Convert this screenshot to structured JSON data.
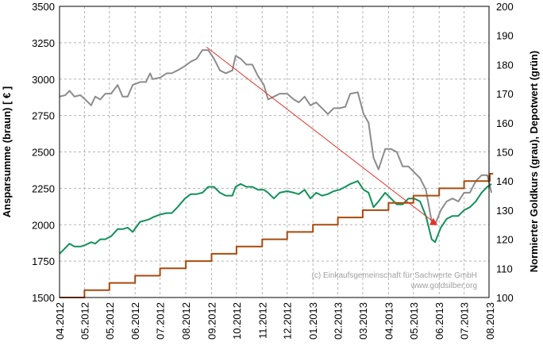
{
  "chart_data": {
    "type": "line",
    "title": "",
    "xlabel": "",
    "ylabel_left": "Ansparsumme (braun) [ € ]",
    "ylabel_right": "Normierter Goldkurs (grau), Depotwert (grün)",
    "x_range": [
      "2012-04-01",
      "2013-08-31"
    ],
    "x_tick_labels": [
      "04.2012",
      "05.2012",
      "05.2012",
      "06.2012",
      "07.2012",
      "08.2012",
      "09.2012",
      "10.2012",
      "11.2012",
      "12.2012",
      "01.2013",
      "02.2013",
      "03.2013",
      "04.2013",
      "05.2013",
      "06.2013",
      "07.2013",
      "08.2013"
    ],
    "x_tick_dates": [
      "2012-04-01",
      "2012-05-01",
      "2012-05-31",
      "2012-07-01",
      "2012-07-31",
      "2012-08-31",
      "2012-10-01",
      "2012-10-31",
      "2012-12-01",
      "2012-12-31",
      "2013-01-31",
      "2013-03-02",
      "2013-04-01",
      "2013-05-02",
      "2013-06-01",
      "2013-07-02",
      "2013-08-01",
      "2013-09-01"
    ],
    "y_left": {
      "range": [
        1500,
        3500
      ],
      "ticks": [
        "1500",
        "1750",
        "2000",
        "2250",
        "2500",
        "2750",
        "3000",
        "3250",
        "3500"
      ]
    },
    "y_right": {
      "range": [
        100,
        200
      ],
      "ticks": [
        "100",
        "110",
        "120",
        "130",
        "140",
        "150",
        "160",
        "170",
        "180",
        "190",
        "200"
      ]
    },
    "grid": true,
    "series": [
      {
        "axis": "right",
        "color": "#8c8c8c",
        "points": [
          [
            "2012-04-01",
            169
          ],
          [
            "2012-04-08",
            169.5
          ],
          [
            "2012-04-13",
            171
          ],
          [
            "2012-04-19",
            169
          ],
          [
            "2012-04-26",
            169.5
          ],
          [
            "2012-05-02",
            168
          ],
          [
            "2012-05-09",
            166
          ],
          [
            "2012-05-14",
            169
          ],
          [
            "2012-05-20",
            168
          ],
          [
            "2012-05-26",
            170
          ],
          [
            "2012-06-02",
            170
          ],
          [
            "2012-06-10",
            173
          ],
          [
            "2012-06-16",
            169
          ],
          [
            "2012-06-22",
            169
          ],
          [
            "2012-06-28",
            173
          ],
          [
            "2012-07-07",
            174
          ],
          [
            "2012-07-14",
            174
          ],
          [
            "2012-07-19",
            177
          ],
          [
            "2012-07-22",
            175
          ],
          [
            "2012-07-31",
            175.5
          ],
          [
            "2012-08-08",
            177
          ],
          [
            "2012-08-14",
            177
          ],
          [
            "2012-08-21",
            178
          ],
          [
            "2012-08-30",
            179.5
          ],
          [
            "2012-09-06",
            181
          ],
          [
            "2012-09-13",
            182
          ],
          [
            "2012-09-20",
            185
          ],
          [
            "2012-09-27",
            185
          ],
          [
            "2012-10-04",
            182
          ],
          [
            "2012-10-11",
            178
          ],
          [
            "2012-10-18",
            177
          ],
          [
            "2012-10-26",
            178
          ],
          [
            "2012-10-30",
            183
          ],
          [
            "2012-11-05",
            182
          ],
          [
            "2012-11-12",
            180
          ],
          [
            "2012-11-19",
            180
          ],
          [
            "2012-11-26",
            176
          ],
          [
            "2012-12-03",
            173
          ],
          [
            "2012-12-08",
            168
          ],
          [
            "2012-12-15",
            169
          ],
          [
            "2012-12-22",
            170
          ],
          [
            "2012-12-31",
            170
          ],
          [
            "2013-01-08",
            168
          ],
          [
            "2013-01-14",
            167
          ],
          [
            "2013-01-21",
            169
          ],
          [
            "2013-01-28",
            166
          ],
          [
            "2013-02-04",
            167
          ],
          [
            "2013-02-11",
            165
          ],
          [
            "2013-02-18",
            163
          ],
          [
            "2013-02-25",
            165
          ],
          [
            "2013-03-04",
            165
          ],
          [
            "2013-03-11",
            165.5
          ],
          [
            "2013-03-17",
            170
          ],
          [
            "2013-03-26",
            170.5
          ],
          [
            "2013-04-02",
            163
          ],
          [
            "2013-04-08",
            160
          ],
          [
            "2013-04-14",
            148
          ],
          [
            "2013-04-20",
            144
          ],
          [
            "2013-04-28",
            151
          ],
          [
            "2013-05-05",
            151
          ],
          [
            "2013-05-12",
            150
          ],
          [
            "2013-05-19",
            145
          ],
          [
            "2013-05-26",
            145
          ],
          [
            "2013-06-02",
            143
          ],
          [
            "2013-06-09",
            141
          ],
          [
            "2013-06-16",
            137
          ],
          [
            "2013-06-23",
            126
          ],
          [
            "2013-06-27",
            125
          ],
          [
            "2013-07-04",
            130
          ],
          [
            "2013-07-11",
            133
          ],
          [
            "2013-07-18",
            134
          ],
          [
            "2013-07-25",
            133
          ],
          [
            "2013-08-01",
            136
          ],
          [
            "2013-08-08",
            136
          ],
          [
            "2013-08-15",
            140
          ],
          [
            "2013-08-22",
            142
          ],
          [
            "2013-08-29",
            142
          ],
          [
            "2013-09-03",
            136
          ]
        ]
      },
      {
        "axis": "right",
        "color": "#119158",
        "points": [
          [
            "2012-04-01",
            115
          ],
          [
            "2012-04-08",
            117
          ],
          [
            "2012-04-13",
            118.5
          ],
          [
            "2012-04-19",
            117.5
          ],
          [
            "2012-04-26",
            117.5
          ],
          [
            "2012-05-02",
            118
          ],
          [
            "2012-05-09",
            119
          ],
          [
            "2012-05-14",
            118.5
          ],
          [
            "2012-05-20",
            120
          ],
          [
            "2012-05-26",
            120
          ],
          [
            "2012-06-02",
            121
          ],
          [
            "2012-06-10",
            123.5
          ],
          [
            "2012-06-16",
            123.5
          ],
          [
            "2012-06-22",
            124
          ],
          [
            "2012-06-28",
            122.5
          ],
          [
            "2012-07-07",
            126
          ],
          [
            "2012-07-14",
            126.5
          ],
          [
            "2012-07-19",
            127
          ],
          [
            "2012-07-22",
            127.5
          ],
          [
            "2012-07-31",
            128.5
          ],
          [
            "2012-08-08",
            129
          ],
          [
            "2012-08-14",
            129
          ],
          [
            "2012-08-21",
            131
          ],
          [
            "2012-08-30",
            134
          ],
          [
            "2012-09-06",
            135.5
          ],
          [
            "2012-09-13",
            135.5
          ],
          [
            "2012-09-20",
            136
          ],
          [
            "2012-09-27",
            138
          ],
          [
            "2012-10-04",
            138
          ],
          [
            "2012-10-11",
            136
          ],
          [
            "2012-10-18",
            135
          ],
          [
            "2012-10-26",
            135
          ],
          [
            "2012-10-30",
            138
          ],
          [
            "2012-11-05",
            139
          ],
          [
            "2012-11-12",
            138
          ],
          [
            "2012-11-19",
            138
          ],
          [
            "2012-11-26",
            137
          ],
          [
            "2012-12-03",
            137
          ],
          [
            "2012-12-08",
            136
          ],
          [
            "2012-12-15",
            134
          ],
          [
            "2012-12-22",
            136
          ],
          [
            "2012-12-31",
            136.5
          ],
          [
            "2013-01-08",
            136
          ],
          [
            "2013-01-14",
            135.5
          ],
          [
            "2013-01-21",
            137
          ],
          [
            "2013-01-28",
            134
          ],
          [
            "2013-02-04",
            136
          ],
          [
            "2013-02-11",
            135
          ],
          [
            "2013-02-18",
            135.5
          ],
          [
            "2013-02-25",
            136.5
          ],
          [
            "2013-03-04",
            137
          ],
          [
            "2013-03-11",
            138
          ],
          [
            "2013-03-17",
            139
          ],
          [
            "2013-03-26",
            140
          ],
          [
            "2013-04-02",
            137
          ],
          [
            "2013-04-08",
            136
          ],
          [
            "2013-04-14",
            131
          ],
          [
            "2013-04-20",
            133
          ],
          [
            "2013-04-28",
            136
          ],
          [
            "2013-05-05",
            134
          ],
          [
            "2013-05-12",
            132
          ],
          [
            "2013-05-19",
            132
          ],
          [
            "2013-05-26",
            134
          ],
          [
            "2013-06-02",
            134
          ],
          [
            "2013-06-09",
            133
          ],
          [
            "2013-06-16",
            128
          ],
          [
            "2013-06-23",
            120
          ],
          [
            "2013-06-27",
            119
          ],
          [
            "2013-07-04",
            124
          ],
          [
            "2013-07-11",
            127
          ],
          [
            "2013-07-18",
            128
          ],
          [
            "2013-07-25",
            128
          ],
          [
            "2013-08-01",
            130
          ],
          [
            "2013-08-08",
            131
          ],
          [
            "2013-08-15",
            133
          ],
          [
            "2013-08-22",
            136
          ],
          [
            "2013-08-29",
            138
          ],
          [
            "2013-09-03",
            139
          ]
        ]
      },
      {
        "axis": "left",
        "color": "#a94a0d",
        "step": true,
        "points": [
          [
            "2012-04-01",
            1500
          ],
          [
            "2012-05-01",
            1550
          ],
          [
            "2012-05-31",
            1600
          ],
          [
            "2012-07-01",
            1650
          ],
          [
            "2012-07-31",
            1700
          ],
          [
            "2012-08-31",
            1750
          ],
          [
            "2012-10-01",
            1800
          ],
          [
            "2012-10-31",
            1850
          ],
          [
            "2012-12-01",
            1900
          ],
          [
            "2012-12-31",
            1950
          ],
          [
            "2013-01-31",
            2000
          ],
          [
            "2013-03-02",
            2050
          ],
          [
            "2013-04-01",
            2100
          ],
          [
            "2013-05-02",
            2150
          ],
          [
            "2013-06-01",
            2200
          ],
          [
            "2013-07-02",
            2250
          ],
          [
            "2013-08-01",
            2300
          ],
          [
            "2013-09-01",
            2350
          ],
          [
            "2013-09-05",
            2350
          ]
        ]
      }
    ],
    "annotations": {
      "trend_line": {
        "color": "#e4312a",
        "from": [
          "2012-09-25",
          3220
        ],
        "to": [
          "2013-06-25",
          2020
        ]
      },
      "marker": {
        "color": "#e4312a",
        "at": [
          "2013-06-25",
          2020
        ]
      },
      "copyright": [
        "(c) Einkaufsgemeinschaft für Sachwerte GmbH",
        "www.goldsilber.org"
      ]
    }
  }
}
